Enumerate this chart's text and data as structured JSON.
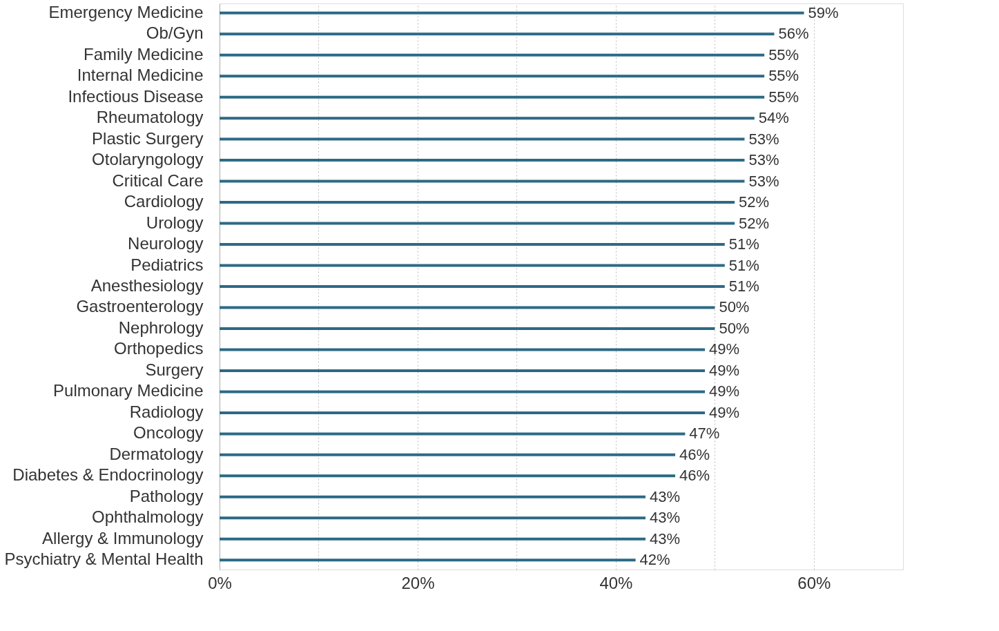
{
  "chart_data": {
    "type": "bar",
    "orientation": "horizontal",
    "categories": [
      "Emergency Medicine",
      "Ob/Gyn",
      "Family Medicine",
      "Internal Medicine",
      "Infectious Disease",
      "Rheumatology",
      "Plastic Surgery",
      "Otolaryngology",
      "Critical Care",
      "Cardiology",
      "Urology",
      "Neurology",
      "Pediatrics",
      "Anesthesiology",
      "Gastroenterology",
      "Nephrology",
      "Orthopedics",
      "Surgery",
      "Pulmonary Medicine",
      "Radiology",
      "Oncology",
      "Dermatology",
      "Diabetes & Endocrinology",
      "Pathology",
      "Ophthalmology",
      "Allergy & Immunology",
      "Psychiatry & Mental Health"
    ],
    "values": [
      59,
      56,
      55,
      55,
      55,
      54,
      53,
      53,
      53,
      52,
      52,
      51,
      51,
      51,
      50,
      50,
      49,
      49,
      49,
      49,
      47,
      46,
      46,
      43,
      43,
      43,
      42
    ],
    "value_labels": [
      "59%",
      "56%",
      "55%",
      "55%",
      "55%",
      "54%",
      "53%",
      "53%",
      "53%",
      "52%",
      "52%",
      "51%",
      "51%",
      "51%",
      "50%",
      "50%",
      "49%",
      "49%",
      "49%",
      "49%",
      "47%",
      "46%",
      "46%",
      "43%",
      "43%",
      "43%",
      "42%"
    ],
    "color": "#2c6a85",
    "xlim": [
      0,
      69
    ],
    "xticks": [
      {
        "value": 0,
        "label": "0%"
      },
      {
        "value": 10,
        "label": null
      },
      {
        "value": 20,
        "label": "20%"
      },
      {
        "value": 30,
        "label": null
      },
      {
        "value": 40,
        "label": "40%"
      },
      {
        "value": 50,
        "label": null
      },
      {
        "value": 60,
        "label": "60%"
      }
    ],
    "grid": "x"
  }
}
